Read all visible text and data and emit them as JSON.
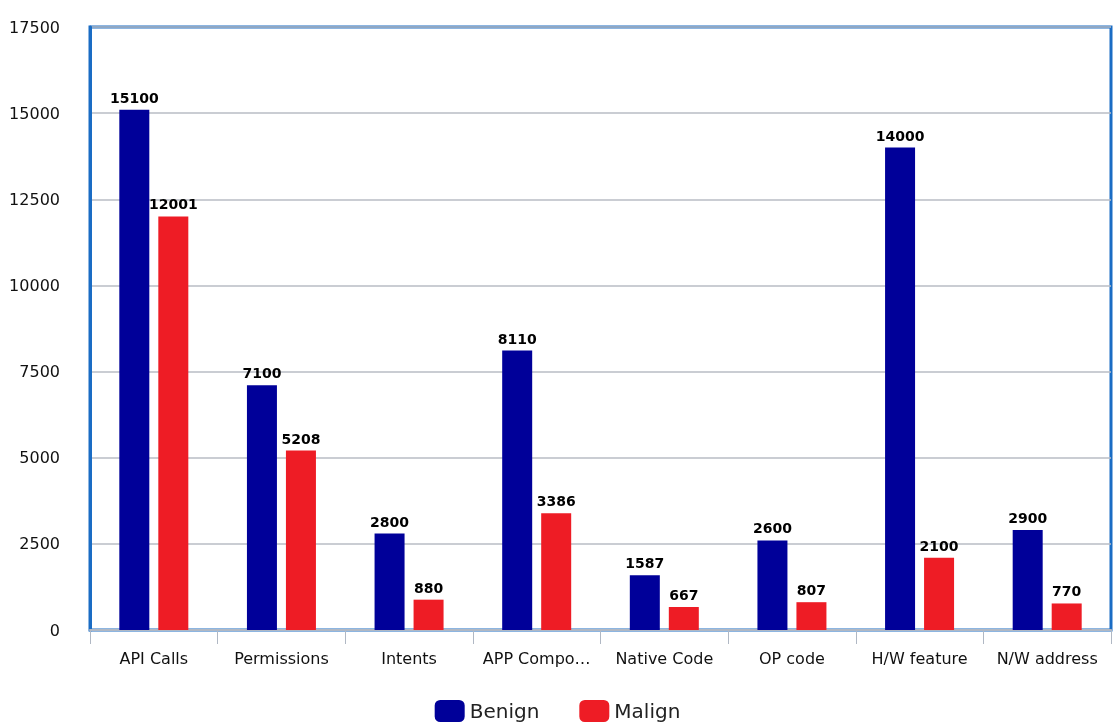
{
  "chart_data": {
    "type": "bar",
    "categories": [
      "API Calls",
      "Permissions",
      "Intents",
      "APP Compo…",
      "Native Code",
      "OP code",
      "H/W feature",
      "N/W address"
    ],
    "series": [
      {
        "name": "Benign",
        "color": "#000099",
        "values": [
          15100,
          7100,
          2800,
          8110,
          1587,
          2600,
          14000,
          2900
        ]
      },
      {
        "name": "Malign",
        "color": "#ee1c25",
        "values": [
          12001,
          5208,
          880,
          3386,
          667,
          807,
          2100,
          770
        ]
      }
    ],
    "ylim": [
      0,
      17500
    ],
    "yticks": [
      0,
      2500,
      5000,
      7500,
      10000,
      12500,
      15000,
      17500
    ],
    "grid": "y",
    "legend": "bottom",
    "data_labels": true
  }
}
